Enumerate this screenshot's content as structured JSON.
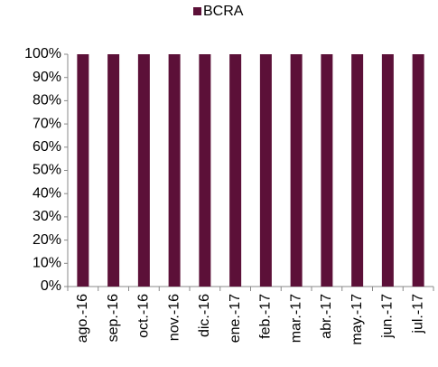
{
  "chart_data": {
    "type": "bar",
    "categories": [
      "ago.-16",
      "sep.-16",
      "oct.-16",
      "nov.-16",
      "dic.-16",
      "ene.-17",
      "feb.-17",
      "mar.-17",
      "abr.-17",
      "may.-17",
      "jun.-17",
      "jul.-17"
    ],
    "series": [
      {
        "name": "BCRA",
        "color": "#5c1038",
        "values": [
          100,
          100,
          100,
          100,
          100,
          100,
          100,
          100,
          100,
          100,
          100,
          100
        ]
      }
    ],
    "ylim": [
      0,
      100
    ],
    "yticks": [
      {
        "value": 0,
        "label": "0%"
      },
      {
        "value": 10,
        "label": "10%"
      },
      {
        "value": 20,
        "label": "20%"
      },
      {
        "value": 30,
        "label": "30%"
      },
      {
        "value": 40,
        "label": "40%"
      },
      {
        "value": 50,
        "label": "50%"
      },
      {
        "value": 60,
        "label": "60%"
      },
      {
        "value": 70,
        "label": "70%"
      },
      {
        "value": 80,
        "label": "80%"
      },
      {
        "value": 90,
        "label": "90%"
      },
      {
        "value": 100,
        "label": "100%"
      }
    ],
    "grid": false,
    "legend": "top"
  }
}
